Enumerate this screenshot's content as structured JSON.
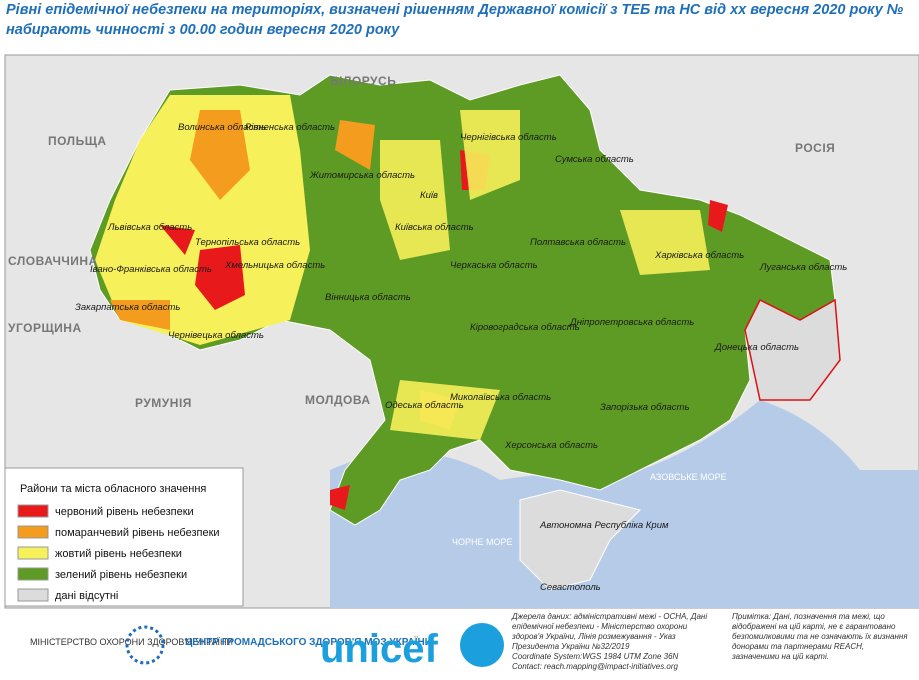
{
  "header": {
    "title_line1": "Рівні епідемічної небезпеки на територіях, визначені рішенням Державної комісії з ТЕБ та НС від хх вересня 2020 року №",
    "title_line2": "набирають чинності з 00.00 годин  вересня 2020 року"
  },
  "countries": [
    "БІЛОРУСЬ",
    "ПОЛЬЩА",
    "РОСІЯ",
    "СЛОВАЧЧИНА",
    "УГОРЩИНА",
    "РУМУНІЯ",
    "МОЛДОВА"
  ],
  "seas": [
    "АЗОВСЬКЕ МОРЕ",
    "ЧОРНЕ МОРЕ"
  ],
  "regions": [
    "Волинська область",
    "Рівненська область",
    "Житомирська область",
    "Чернігівська область",
    "Сумська область",
    "Київ",
    "Київська область",
    "Львівська область",
    "Тернопільська область",
    "Хмельницька область",
    "Івано-Франківська область",
    "Закарпатська область",
    "Чернівецька область",
    "Вінницька область",
    "Черкаська область",
    "Полтавська область",
    "Харківська область",
    "Луганська область",
    "Донецька область",
    "Кіровоградська область",
    "Дніпропетровська область",
    "Одеська область",
    "Миколаївська область",
    "Запорізька область",
    "Херсонська область",
    "Автономна Республіка Крим",
    "Севастополь"
  ],
  "legend": {
    "title": "Райони та міста обласного значення",
    "items": [
      {
        "label": "червоний рівень небезпеки",
        "color": "#e8191b"
      },
      {
        "label": "помаранчевий рівень небезпеки",
        "color": "#f39c1e"
      },
      {
        "label": "жовтий рівень небезпеки",
        "color": "#f6f05a"
      },
      {
        "label": "зелений рівень небезпеки",
        "color": "#5e9b24"
      },
      {
        "label": "дані відсутні",
        "color": "#dcdcdc"
      }
    ]
  },
  "footer": {
    "ministry": "МІНІСТЕРСТВО ОХОРОНИ ЗДОРОВ'Я УКРАЇНИ",
    "center": "ЦЕНТР ГРОМАДСЬКОГО ЗДОРОВ'Я МОЗ УКРАЇНИ",
    "unicef": "unicef",
    "sources": "Джерела даних: адміністративні межі - OCHA, Дані епідемічної небезпеки - Міністерство охорони здоров'я України, Лінія розмежування - Указ Президента України №32/2019",
    "coords": "Coordinate System:WGS 1984 UTM Zone 36N",
    "contact": "Contact: reach.mapping@impact-initiatives.org",
    "note": "Примітка: Дані, позначення та межі, що відображені на цій карті, не є гарантовано безпомилковими та не означають їх визнання донорами та партнерами REACH, зазначеними на цій карті."
  }
}
